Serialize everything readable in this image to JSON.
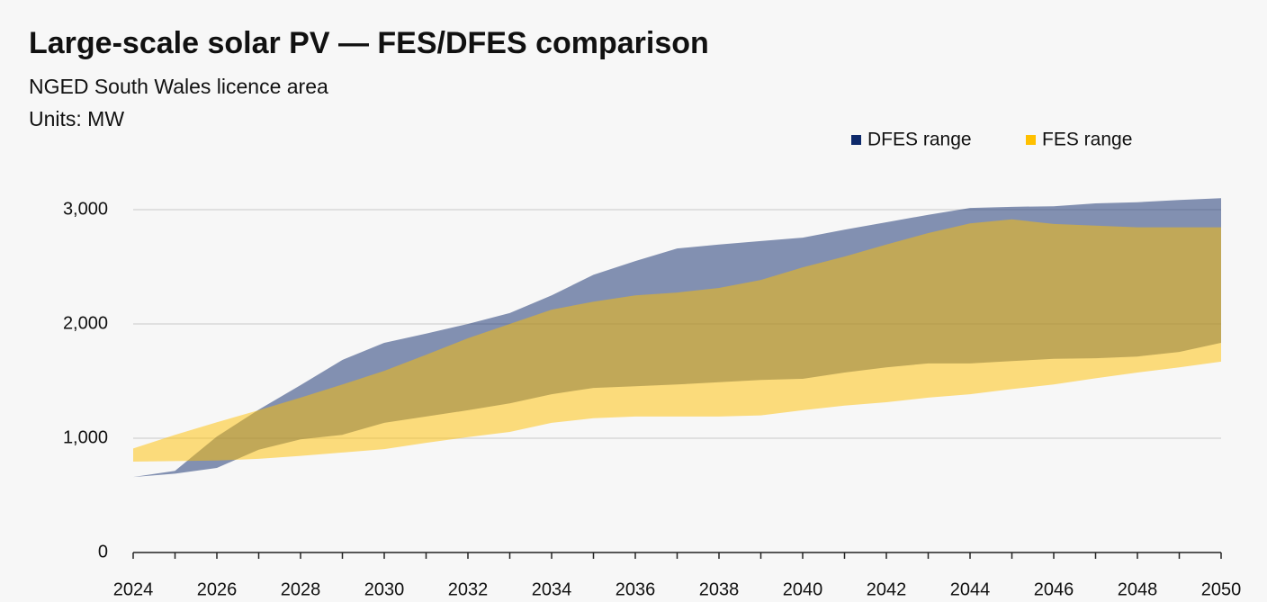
{
  "chart_data": {
    "type": "area",
    "title": "Large-scale solar PV — FES/DFES comparison",
    "subtitle": "NGED South Wales licence area",
    "units": "Units: MW",
    "x": [
      2024,
      2025,
      2026,
      2027,
      2028,
      2029,
      2030,
      2031,
      2032,
      2033,
      2034,
      2035,
      2036,
      2037,
      2038,
      2039,
      2040,
      2041,
      2042,
      2043,
      2044,
      2045,
      2046,
      2047,
      2048,
      2049,
      2050
    ],
    "series": [
      {
        "name": "DFES range",
        "color": "#0e2a6b",
        "upper": [
          660,
          715,
          1015,
          1250,
          1465,
          1685,
          1835,
          1915,
          2000,
          2095,
          2250,
          2430,
          2550,
          2660,
          2695,
          2725,
          2755,
          2825,
          2890,
          2955,
          3015,
          3025,
          3030,
          3055,
          3065,
          3085,
          3100
        ],
        "lower": [
          660,
          690,
          740,
          900,
          990,
          1030,
          1135,
          1190,
          1245,
          1305,
          1385,
          1440,
          1455,
          1470,
          1490,
          1510,
          1520,
          1575,
          1620,
          1655,
          1655,
          1675,
          1695,
          1700,
          1715,
          1755,
          1835
        ]
      },
      {
        "name": "FES range",
        "color": "#ffc000",
        "upper": [
          910,
          1030,
          1140,
          1245,
          1355,
          1470,
          1590,
          1730,
          1875,
          2000,
          2125,
          2195,
          2250,
          2275,
          2315,
          2385,
          2495,
          2590,
          2695,
          2795,
          2880,
          2915,
          2875,
          2860,
          2845,
          2845,
          2845
        ],
        "lower": [
          795,
          800,
          805,
          820,
          845,
          875,
          905,
          960,
          1010,
          1055,
          1135,
          1175,
          1190,
          1190,
          1190,
          1200,
          1245,
          1285,
          1315,
          1355,
          1385,
          1430,
          1470,
          1525,
          1575,
          1620,
          1670
        ]
      }
    ],
    "xlim": [
      2024,
      2050
    ],
    "xticks": [
      2024,
      2026,
      2028,
      2030,
      2032,
      2034,
      2036,
      2038,
      2040,
      2042,
      2044,
      2046,
      2048,
      2050
    ],
    "ylim": [
      0,
      3000
    ],
    "yticks": [
      0,
      {
        "value": 1000,
        "label": "1,000"
      },
      {
        "value": 2000,
        "label": "2,000"
      },
      {
        "value": 3000,
        "label": "3,000"
      }
    ],
    "grid": true,
    "legend": "top-right"
  }
}
